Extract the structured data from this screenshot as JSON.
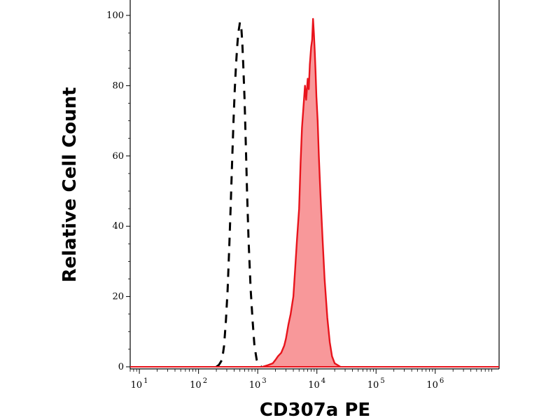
{
  "chart_data": {
    "type": "area",
    "title": "",
    "xlabel": "CD307a PE",
    "ylabel": "Relative Cell Count",
    "x_scale": "log",
    "xlim": [
      7,
      12000000
    ],
    "ylim": [
      0,
      105
    ],
    "y_ticks": [
      0,
      20,
      40,
      60,
      80,
      100
    ],
    "x_ticks": [
      {
        "value": 10,
        "base": "10",
        "exp": "1"
      },
      {
        "value": 100,
        "base": "10",
        "exp": "2"
      },
      {
        "value": 1000,
        "base": "10",
        "exp": "3"
      },
      {
        "value": 10000,
        "base": "10",
        "exp": "4"
      },
      {
        "value": 100000,
        "base": "10",
        "exp": "5"
      },
      {
        "value": 1000000,
        "base": "10",
        "exp": "6"
      }
    ],
    "grid": false,
    "series": [
      {
        "style": "dashed",
        "color": "#000000",
        "fill": "none",
        "x": [
          200,
          220,
          250,
          270,
          290,
          310,
          330,
          350,
          370,
          390,
          410,
          430,
          450,
          470,
          490,
          500,
          510,
          530,
          550,
          570,
          600,
          630,
          660,
          700,
          760,
          820,
          880,
          960,
          1050,
          1150
        ],
        "y": [
          0,
          0.5,
          2,
          6,
          13,
          22,
          34,
          46,
          59,
          70,
          79,
          86,
          91,
          95,
          97,
          98,
          97.5,
          96,
          92,
          86,
          76,
          63,
          50,
          36,
          22,
          13,
          6,
          2,
          0.5,
          0
        ]
      },
      {
        "style": "solid",
        "color": "#e8141c",
        "fill": "#f8989a",
        "x": [
          1200,
          1500,
          1800,
          2000,
          2200,
          2500,
          2800,
          3000,
          3300,
          3600,
          4000,
          4300,
          4600,
          5000,
          5300,
          5600,
          6000,
          6300,
          6600,
          7000,
          7300,
          7600,
          8000,
          8300,
          8600,
          8900,
          9200,
          9500,
          9800,
          10300,
          10800,
          11500,
          12500,
          13500,
          15000,
          16500,
          18000,
          20000,
          25000
        ],
        "y": [
          0,
          0.5,
          1,
          2,
          3,
          4,
          6,
          8,
          12,
          15,
          20,
          28,
          36,
          45,
          58,
          68,
          75,
          80,
          76,
          82,
          79,
          86,
          91,
          93,
          99,
          95,
          90,
          84,
          77,
          70,
          60,
          49,
          36,
          25,
          14,
          7,
          3,
          1,
          0
        ]
      }
    ]
  }
}
